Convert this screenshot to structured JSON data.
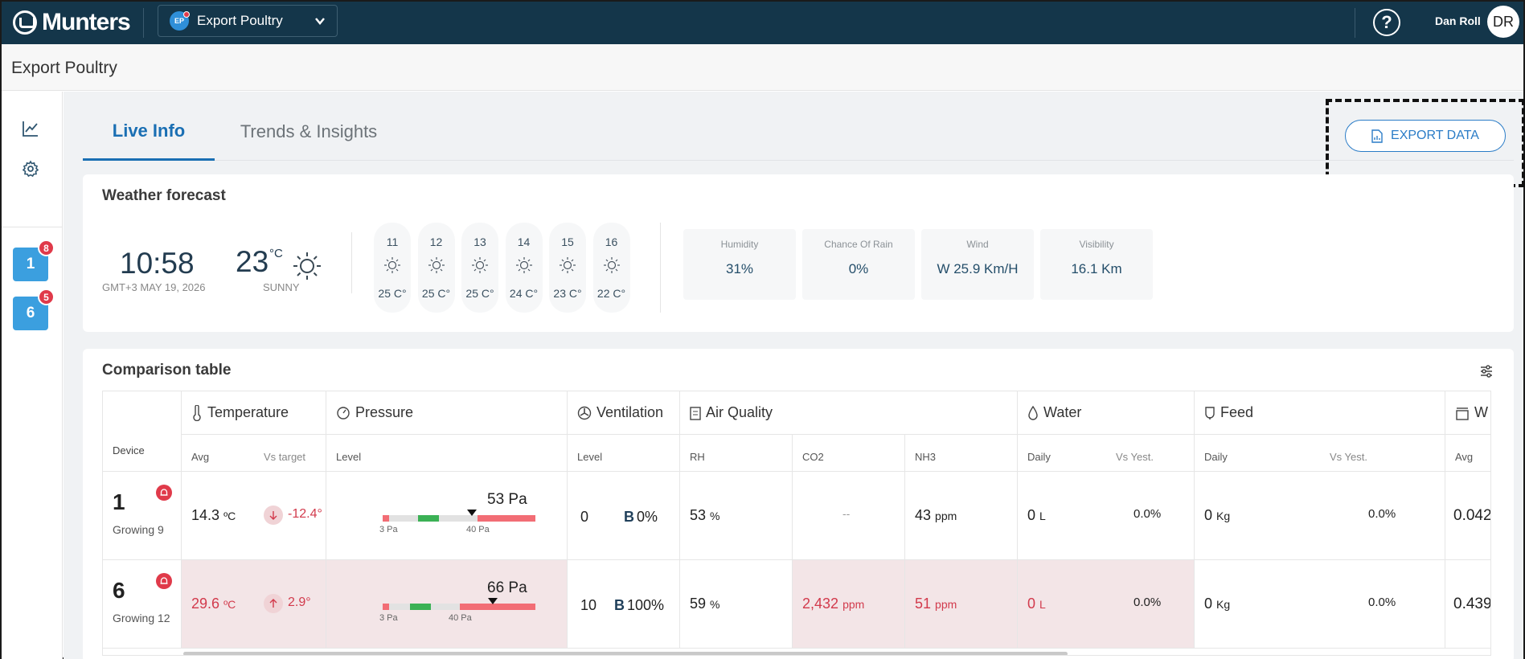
{
  "header": {
    "brand": "Munters",
    "farm_badge": "EP",
    "farm_name": "Export Poultry",
    "user_name": "Dan Roll",
    "user_initials": "DR"
  },
  "page": {
    "title": "Export Poultry"
  },
  "sidebar": {
    "houses": [
      {
        "number": "1",
        "alerts": "8"
      },
      {
        "number": "6",
        "alerts": "5"
      }
    ]
  },
  "tabs": [
    {
      "label": "Live Info",
      "active": true
    },
    {
      "label": "Trends & Insights",
      "active": false
    }
  ],
  "export_button": {
    "label": "EXPORT DATA"
  },
  "weather": {
    "title": "Weather forecast",
    "time": "10:58",
    "date": "GMT+3 MAY 19, 2026",
    "temperature": "23",
    "unit": "°C",
    "condition": "SUNNY",
    "forecast": [
      {
        "hour": "11",
        "temp": "25 C°"
      },
      {
        "hour": "12",
        "temp": "25 C°"
      },
      {
        "hour": "13",
        "temp": "25 C°"
      },
      {
        "hour": "14",
        "temp": "24 C°"
      },
      {
        "hour": "15",
        "temp": "23 C°"
      },
      {
        "hour": "16",
        "temp": "22 C°"
      }
    ],
    "stats": [
      {
        "label": "Humidity",
        "value": "31%"
      },
      {
        "label": "Chance Of Rain",
        "value": "0%"
      },
      {
        "label": "Wind",
        "value": "W 25.9 Km/H"
      },
      {
        "label": "Visibility",
        "value": "16.1 Km"
      }
    ]
  },
  "comparison": {
    "title": "Comparison table",
    "groups": {
      "temperature": "Temperature",
      "pressure": "Pressure",
      "ventilation": "Ventilation",
      "air_quality": "Air Quality",
      "water": "Water",
      "feed": "Feed",
      "weight": "W"
    },
    "subheaders": {
      "device": "Device",
      "avg": "Avg",
      "vs_target": "Vs target",
      "level": "Level",
      "vent_level": "Level",
      "rh": "RH",
      "co2": "CO2",
      "nh3": "NH3",
      "water_daily": "Daily",
      "water_vs": "Vs Yest.",
      "feed_daily": "Daily",
      "feed_vs": "Vs Yest.",
      "weight_avg": "Avg"
    },
    "pressure_scale": {
      "low": "3 Pa",
      "high": "40 Pa"
    },
    "rows": [
      {
        "device": "1",
        "stage": "Growing 9",
        "temp_avg": "14.3",
        "temp_unit": "ºC",
        "vs_target": "-12.4°",
        "pressure": "53 Pa",
        "pressure_value": 53,
        "vent_level": "0",
        "vent_mode": "B",
        "vent_pct": "0%",
        "rh": "53",
        "rh_unit": "%",
        "co2": "--",
        "co2_unit": "",
        "nh3": "43",
        "nh3_unit": "ppm",
        "water": "0",
        "water_unit": "L",
        "water_vs": "0.0%",
        "feed": "0",
        "feed_unit": "Kg",
        "feed_vs": "0.0%",
        "weight": "0.042"
      },
      {
        "device": "6",
        "stage": "Growing 12",
        "temp_avg": "29.6",
        "temp_unit": "ºC",
        "vs_target": "2.9°",
        "pressure": "66 Pa",
        "pressure_value": 66,
        "vent_level": "10",
        "vent_mode": "B",
        "vent_pct": "100%",
        "rh": "59",
        "rh_unit": "%",
        "co2": "2,432",
        "co2_unit": "ppm",
        "nh3": "51",
        "nh3_unit": "ppm",
        "water": "0",
        "water_unit": "L",
        "water_vs": "0.0%",
        "feed": "0",
        "feed_unit": "Kg",
        "feed_vs": "0.0%",
        "weight": "0.439"
      }
    ]
  }
}
